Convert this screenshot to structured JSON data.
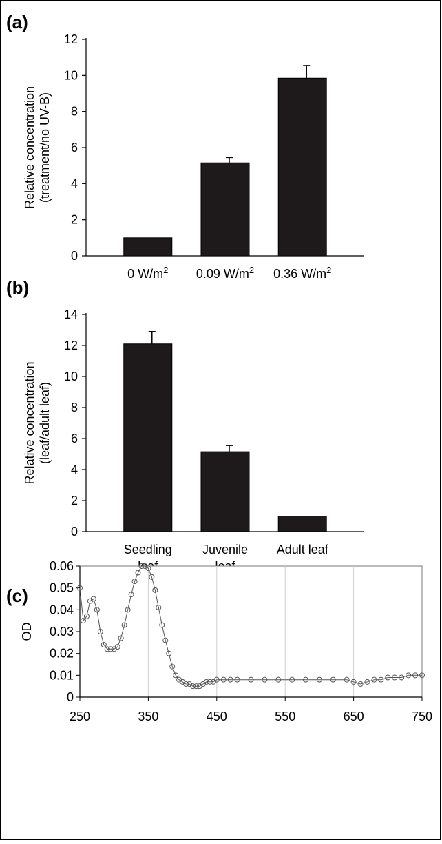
{
  "chart_data": [
    {
      "panel": "(a)",
      "type": "bar",
      "categories": [
        "0 W/m2",
        "0.09 W/m2",
        "0.36 W/m2"
      ],
      "category_labels": [
        [
          "0 W/m",
          "2"
        ],
        [
          "0.09 W/m",
          "2"
        ],
        [
          "0.36 W/m",
          "2"
        ]
      ],
      "values": [
        1.0,
        5.15,
        9.85
      ],
      "errors": [
        0,
        0.3,
        0.7
      ],
      "ylabel": [
        "Relative concentration",
        "(treatment/no UV-B)"
      ],
      "ylim": [
        0,
        12
      ],
      "yticks": [
        0,
        2,
        4,
        6,
        8,
        10,
        12
      ],
      "bar_color": "#1e1a1c"
    },
    {
      "panel": "(b)",
      "type": "bar",
      "categories": [
        "Seedling leaf",
        "Juvenile leaf",
        "Adult leaf"
      ],
      "category_labels": [
        [
          "Seedling",
          "leaf"
        ],
        [
          "Juvenile",
          "leaf"
        ],
        [
          "Adult leaf"
        ]
      ],
      "values": [
        12.1,
        5.15,
        1.0
      ],
      "errors": [
        0.8,
        0.4,
        0
      ],
      "ylabel": [
        "Relative concentration",
        "(leaf/adult leaf)"
      ],
      "ylim": [
        0,
        14
      ],
      "yticks": [
        0,
        2,
        4,
        6,
        8,
        10,
        12,
        14
      ],
      "bar_color": "#1e1a1c"
    },
    {
      "panel": "(c)",
      "type": "scatter",
      "ylabel": "OD",
      "xlim": [
        250,
        750
      ],
      "ylim": [
        0,
        0.06
      ],
      "xticks": [
        250,
        350,
        450,
        550,
        650,
        750
      ],
      "yticks": [
        "0",
        "0.01",
        "0.02",
        "0.03",
        "0.04",
        "0.05",
        "0.06"
      ],
      "grid": "vertical",
      "marker": "open-circle",
      "color": "#555555",
      "x": [
        250,
        255,
        260,
        265,
        270,
        275,
        280,
        285,
        290,
        295,
        300,
        305,
        310,
        315,
        320,
        325,
        330,
        335,
        340,
        345,
        350,
        355,
        360,
        365,
        370,
        375,
        380,
        385,
        390,
        395,
        400,
        405,
        410,
        415,
        420,
        425,
        430,
        435,
        440,
        445,
        450,
        460,
        470,
        480,
        500,
        520,
        540,
        560,
        580,
        600,
        620,
        640,
        650,
        660,
        670,
        680,
        690,
        700,
        710,
        720,
        730,
        740,
        750
      ],
      "y": [
        0.05,
        0.035,
        0.037,
        0.044,
        0.045,
        0.04,
        0.03,
        0.024,
        0.022,
        0.022,
        0.022,
        0.023,
        0.027,
        0.033,
        0.04,
        0.047,
        0.053,
        0.057,
        0.06,
        0.06,
        0.059,
        0.055,
        0.049,
        0.041,
        0.033,
        0.026,
        0.02,
        0.014,
        0.01,
        0.008,
        0.007,
        0.006,
        0.006,
        0.005,
        0.005,
        0.005,
        0.006,
        0.007,
        0.007,
        0.007,
        0.008,
        0.008,
        0.008,
        0.008,
        0.008,
        0.008,
        0.008,
        0.008,
        0.008,
        0.008,
        0.008,
        0.008,
        0.007,
        0.006,
        0.007,
        0.008,
        0.008,
        0.009,
        0.009,
        0.009,
        0.01,
        0.01,
        0.01
      ]
    }
  ]
}
